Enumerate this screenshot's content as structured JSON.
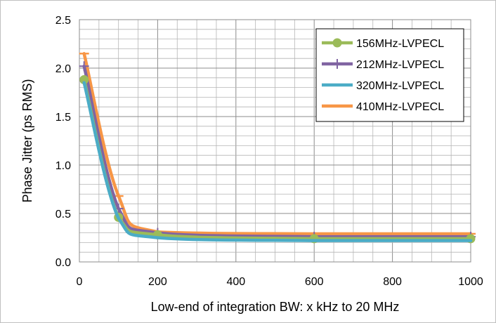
{
  "chart_data": {
    "type": "line",
    "title": "",
    "xlabel": "Low-end of integration BW: x kHz to 20 MHz",
    "ylabel": "Phase Jitter (ps RMS)",
    "xlim": [
      0,
      1000
    ],
    "ylim": [
      0,
      2.5
    ],
    "x_ticks": [
      "0",
      "200",
      "400",
      "600",
      "800",
      "1000"
    ],
    "y_ticks": [
      "0.0",
      "0.5",
      "1.0",
      "1.5",
      "2.0",
      "2.5"
    ],
    "grid": true,
    "legend_position": "top-right",
    "series": [
      {
        "name": "156MHz-LVPECL",
        "color": "#9BBB59",
        "marker": "circle",
        "x": [
          12,
          100,
          200,
          600,
          1000
        ],
        "y": [
          1.88,
          0.46,
          0.28,
          0.24,
          0.24
        ]
      },
      {
        "name": "212MHz-LVPECL",
        "color": "#8064A2",
        "marker": "plus",
        "x": [
          12,
          100,
          200,
          600,
          1000
        ],
        "y": [
          2.02,
          0.55,
          0.3,
          0.26,
          0.26
        ]
      },
      {
        "name": "320MHz-LVPECL",
        "color": "#4BACC6",
        "marker": "none",
        "x": [
          12,
          100,
          200,
          600,
          1000
        ],
        "y": [
          1.85,
          0.45,
          0.25,
          0.22,
          0.22
        ]
      },
      {
        "name": "410MHz-LVPECL",
        "color": "#F79646",
        "marker": "dash",
        "x": [
          12,
          100,
          200,
          600,
          1000
        ],
        "y": [
          2.15,
          0.68,
          0.31,
          0.29,
          0.29
        ]
      }
    ]
  }
}
